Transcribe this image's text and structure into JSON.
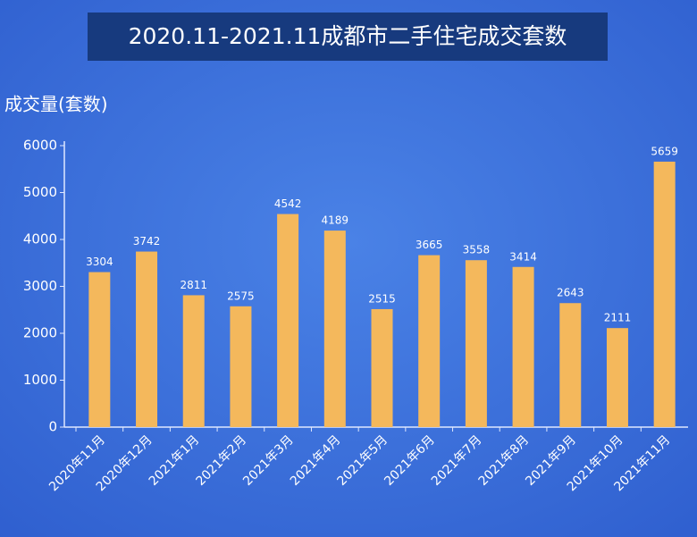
{
  "chart_data": {
    "type": "bar",
    "title": "2020.11-2021.11成都市二手住宅成交套数",
    "y_label": "成交量(套数)",
    "categories": [
      "2020年11月",
      "2020年12月",
      "2021年1月",
      "2021年2月",
      "2021年3月",
      "2021年4月",
      "2021年5月",
      "2021年6月",
      "2021年7月",
      "2021年8月",
      "2021年9月",
      "2021年10月",
      "2021年11月"
    ],
    "values": [
      3304,
      3742,
      2811,
      2575,
      4542,
      4189,
      2515,
      3665,
      3558,
      3414,
      2643,
      2111,
      5659
    ],
    "color": "#f4b85c",
    "ylim": [
      0,
      6000
    ],
    "yticks": [
      0,
      1000,
      2000,
      3000,
      4000,
      5000,
      6000
    ],
    "grid": false
  }
}
